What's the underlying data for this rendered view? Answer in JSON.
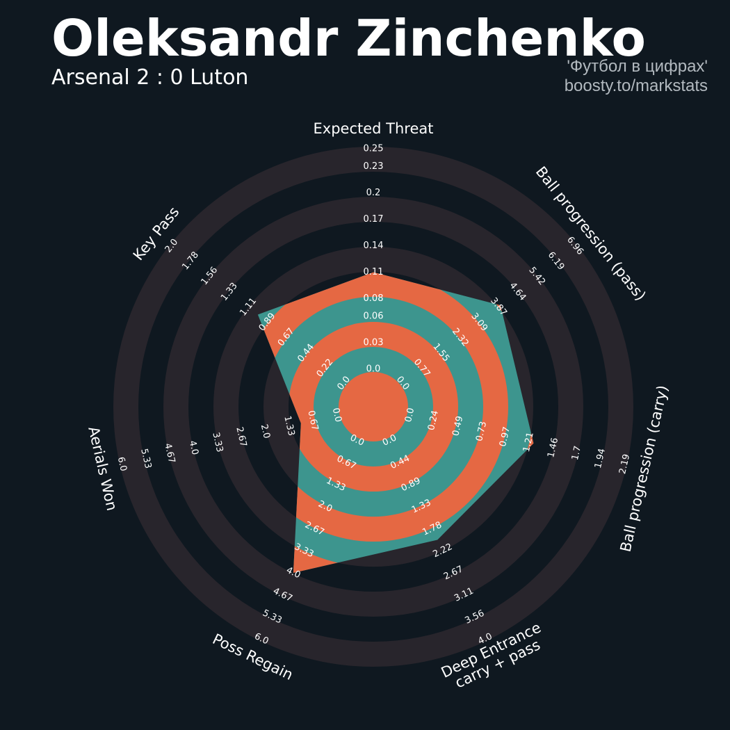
{
  "chart_data": {
    "type": "radar",
    "title": "Oleksandr Zinchenko",
    "subtitle": "Arsenal 2 : 0 Luton",
    "credits": [
      "'Футбол в цифрах'",
      "boosty.to/markstats"
    ],
    "params": [
      "Expected Threat",
      "Ball progression (pass)",
      "Ball progression (carry)",
      "Deep Entrance\ncarry + pass",
      "Poss Regain",
      "Aerials Won",
      "Key Pass"
    ],
    "values": [
      0.11,
      3.95,
      1.26,
      2.0,
      4.0,
      1.0,
      1.0
    ],
    "ranges": [
      [
        0,
        0.25
      ],
      [
        0,
        6.96
      ],
      [
        0,
        2.19
      ],
      [
        0,
        4
      ],
      [
        0,
        6
      ],
      [
        0,
        6
      ],
      [
        0,
        2
      ]
    ],
    "ticks": [
      [
        {
          "value": 0,
          "label": "0.0"
        },
        0.03,
        0.06,
        0.08,
        0.11,
        0.14,
        0.17,
        0.2,
        0.23,
        0.25
      ],
      [
        {
          "value": 0,
          "label": "0.0"
        },
        0.77,
        1.55,
        2.32,
        3.09,
        3.87,
        4.64,
        5.42,
        6.19,
        6.96
      ],
      [
        {
          "value": 0,
          "label": "0.0"
        },
        0.24,
        0.49,
        0.73,
        0.97,
        1.21,
        1.46,
        1.7,
        1.94,
        2.19
      ],
      [
        {
          "value": 0,
          "label": "0.0"
        },
        0.44,
        0.89,
        1.33,
        1.78,
        2.22,
        2.67,
        3.11,
        3.56,
        {
          "value": 4,
          "label": "4.0"
        }
      ],
      [
        {
          "value": 0,
          "label": "0.0"
        },
        0.67,
        1.33,
        {
          "value": 2,
          "label": "2.0"
        },
        2.67,
        3.33,
        {
          "value": 4,
          "label": "4.0"
        },
        4.67,
        5.33,
        {
          "value": 6,
          "label": "6.0"
        }
      ],
      [
        {
          "value": 0,
          "label": "0.0"
        },
        0.67,
        1.33,
        {
          "value": 2,
          "label": "2.0"
        },
        2.67,
        3.33,
        {
          "value": 4,
          "label": "4.0"
        },
        4.67,
        5.33,
        {
          "value": 6,
          "label": "6.0"
        }
      ],
      [
        {
          "value": 0,
          "label": "0.0"
        },
        0.22,
        0.44,
        0.67,
        0.89,
        1.11,
        1.33,
        1.56,
        1.78,
        {
          "value": 2,
          "label": "2.0"
        }
      ]
    ],
    "color": "#3d958e",
    "ring_color": "#e56843"
  }
}
